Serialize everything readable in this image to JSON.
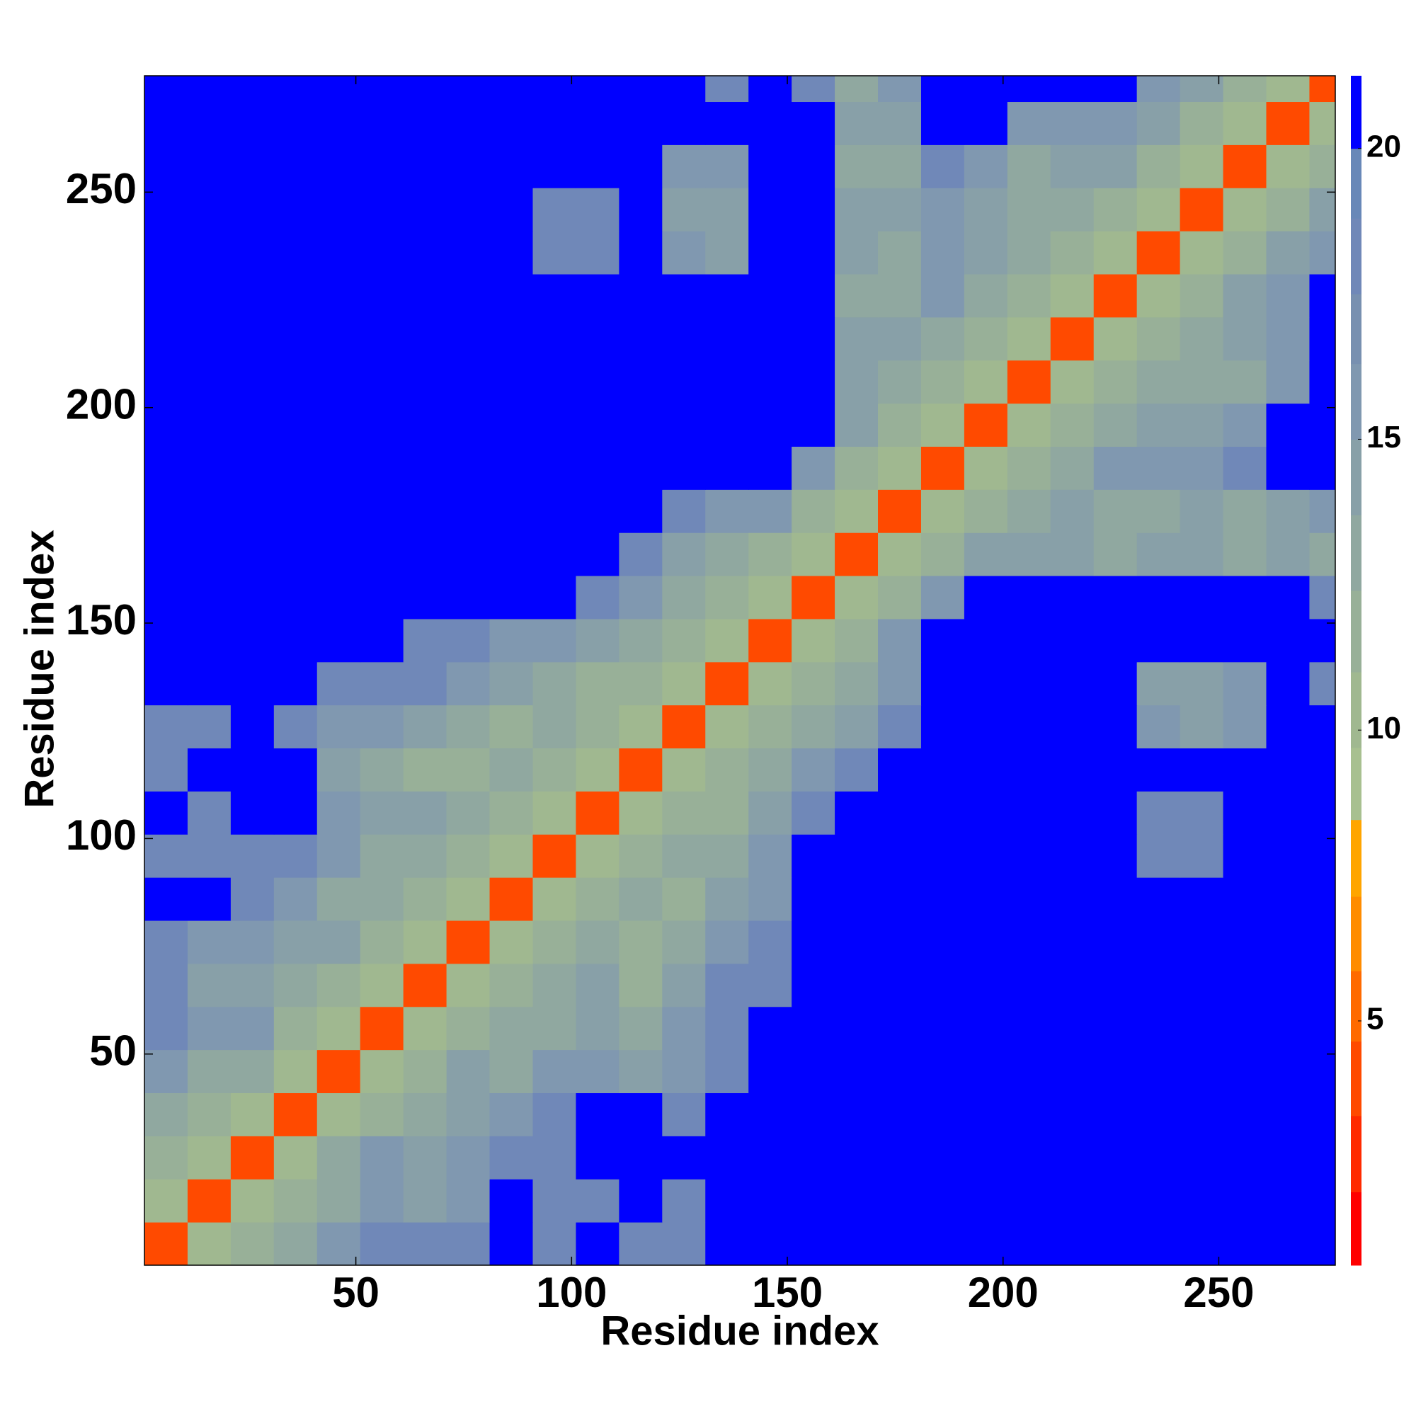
{
  "chart_data": {
    "type": "heatmap",
    "xlabel": "Residue index",
    "ylabel": "Residue index",
    "xlim": [
      1,
      277
    ],
    "ylim": [
      1,
      277
    ],
    "xticks": [
      50,
      100,
      150,
      200,
      250
    ],
    "yticks": [
      50,
      100,
      150,
      200,
      250
    ],
    "x_edges": [
      1,
      11,
      21,
      31,
      41,
      51,
      61,
      71,
      81,
      91,
      101,
      111,
      121,
      131,
      141,
      151,
      161,
      171,
      181,
      191,
      201,
      211,
      221,
      231,
      241,
      251,
      261,
      271,
      277
    ],
    "y_edges": [
      1,
      11,
      21,
      31,
      41,
      51,
      61,
      71,
      81,
      91,
      101,
      111,
      121,
      131,
      141,
      151,
      161,
      171,
      181,
      191,
      201,
      211,
      221,
      231,
      241,
      251,
      261,
      271,
      277
    ],
    "z": [
      [
        4,
        11,
        12,
        13,
        16,
        18,
        18,
        18,
        21,
        18,
        21,
        18,
        18,
        21,
        21,
        21,
        21,
        21,
        21,
        21,
        21,
        21,
        21,
        21,
        21,
        21,
        21,
        21
      ],
      [
        11,
        4,
        11,
        12,
        13,
        16,
        14,
        16,
        21,
        18,
        18,
        21,
        18,
        21,
        21,
        21,
        21,
        21,
        21,
        21,
        21,
        21,
        21,
        21,
        21,
        21,
        21,
        21
      ],
      [
        12,
        11,
        4,
        11,
        13,
        16,
        14,
        16,
        18,
        18,
        21,
        21,
        21,
        21,
        21,
        21,
        21,
        21,
        21,
        21,
        21,
        21,
        21,
        21,
        21,
        21,
        21,
        21
      ],
      [
        13,
        12,
        11,
        4,
        11,
        12,
        13,
        14,
        16,
        18,
        21,
        21,
        18,
        21,
        21,
        21,
        21,
        21,
        21,
        21,
        21,
        21,
        21,
        21,
        21,
        21,
        21,
        21
      ],
      [
        16,
        13,
        13,
        11,
        4,
        11,
        12,
        14,
        13,
        16,
        16,
        14,
        16,
        18,
        21,
        21,
        21,
        21,
        21,
        21,
        21,
        21,
        21,
        21,
        21,
        21,
        21,
        21
      ],
      [
        18,
        16,
        16,
        12,
        11,
        4,
        11,
        12,
        13,
        13,
        14,
        13,
        16,
        18,
        21,
        21,
        21,
        21,
        21,
        21,
        21,
        21,
        21,
        21,
        21,
        21,
        21,
        21
      ],
      [
        18,
        14,
        14,
        13,
        12,
        11,
        4,
        11,
        12,
        13,
        14,
        12,
        14,
        18,
        18,
        21,
        21,
        21,
        21,
        21,
        21,
        21,
        21,
        21,
        21,
        21,
        21,
        21
      ],
      [
        18,
        16,
        16,
        14,
        14,
        12,
        11,
        4,
        11,
        12,
        13,
        12,
        13,
        16,
        18,
        21,
        21,
        21,
        21,
        21,
        21,
        21,
        21,
        21,
        21,
        21,
        21,
        21
      ],
      [
        21,
        21,
        18,
        16,
        13,
        13,
        12,
        11,
        4,
        11,
        12,
        13,
        12,
        14,
        16,
        21,
        21,
        21,
        21,
        21,
        21,
        21,
        21,
        21,
        21,
        21,
        21,
        21
      ],
      [
        18,
        18,
        18,
        18,
        16,
        13,
        13,
        12,
        11,
        4,
        11,
        12,
        13,
        13,
        16,
        21,
        21,
        21,
        21,
        21,
        21,
        21,
        21,
        18,
        18,
        21,
        21,
        21
      ],
      [
        21,
        18,
        21,
        21,
        16,
        14,
        14,
        13,
        12,
        11,
        4,
        11,
        12,
        12,
        14,
        18,
        21,
        21,
        21,
        21,
        21,
        21,
        21,
        18,
        18,
        21,
        21,
        21
      ],
      [
        18,
        21,
        21,
        21,
        14,
        13,
        12,
        12,
        13,
        12,
        11,
        4,
        11,
        12,
        13,
        16,
        18,
        21,
        21,
        21,
        21,
        21,
        21,
        21,
        21,
        21,
        21,
        21
      ],
      [
        18,
        18,
        21,
        18,
        16,
        16,
        14,
        13,
        12,
        13,
        12,
        11,
        4,
        11,
        12,
        13,
        14,
        18,
        21,
        21,
        21,
        21,
        21,
        16,
        14,
        16,
        21,
        21
      ],
      [
        21,
        21,
        21,
        21,
        18,
        18,
        18,
        16,
        14,
        13,
        12,
        12,
        11,
        4,
        11,
        12,
        13,
        16,
        21,
        21,
        21,
        21,
        21,
        14,
        14,
        16,
        21,
        18
      ],
      [
        21,
        21,
        21,
        21,
        21,
        21,
        18,
        18,
        16,
        16,
        14,
        13,
        12,
        11,
        4,
        11,
        12,
        16,
        21,
        21,
        21,
        21,
        21,
        21,
        21,
        21,
        21,
        21
      ],
      [
        21,
        21,
        21,
        21,
        21,
        21,
        21,
        21,
        21,
        21,
        18,
        16,
        13,
        12,
        11,
        4,
        11,
        12,
        16,
        21,
        21,
        21,
        21,
        21,
        21,
        21,
        21,
        18
      ],
      [
        21,
        21,
        21,
        21,
        21,
        21,
        21,
        21,
        21,
        21,
        21,
        18,
        14,
        13,
        12,
        11,
        4,
        11,
        12,
        14,
        14,
        14,
        13,
        14,
        14,
        13,
        14,
        13
      ],
      [
        21,
        21,
        21,
        21,
        21,
        21,
        21,
        21,
        21,
        21,
        21,
        21,
        18,
        16,
        16,
        12,
        11,
        4,
        11,
        12,
        13,
        14,
        13,
        13,
        14,
        13,
        14,
        16
      ],
      [
        21,
        21,
        21,
        21,
        21,
        21,
        21,
        21,
        21,
        21,
        21,
        21,
        21,
        21,
        21,
        16,
        12,
        11,
        4,
        11,
        12,
        13,
        16,
        16,
        16,
        18,
        21,
        21
      ],
      [
        21,
        21,
        21,
        21,
        21,
        21,
        21,
        21,
        21,
        21,
        21,
        21,
        21,
        21,
        21,
        21,
        14,
        12,
        11,
        4,
        11,
        12,
        13,
        14,
        14,
        16,
        21,
        21
      ],
      [
        21,
        21,
        21,
        21,
        21,
        21,
        21,
        21,
        21,
        21,
        21,
        21,
        21,
        21,
        21,
        21,
        14,
        13,
        12,
        11,
        4,
        11,
        12,
        13,
        13,
        13,
        16,
        21
      ],
      [
        21,
        21,
        21,
        21,
        21,
        21,
        21,
        21,
        21,
        21,
        21,
        21,
        21,
        21,
        21,
        21,
        14,
        14,
        13,
        12,
        11,
        4,
        11,
        12,
        13,
        14,
        16,
        21
      ],
      [
        21,
        21,
        21,
        21,
        21,
        21,
        21,
        21,
        21,
        21,
        21,
        21,
        21,
        21,
        21,
        21,
        13,
        13,
        16,
        13,
        12,
        11,
        4,
        11,
        12,
        14,
        16,
        21
      ],
      [
        21,
        21,
        21,
        21,
        21,
        21,
        21,
        21,
        21,
        18,
        18,
        21,
        16,
        14,
        21,
        21,
        14,
        13,
        16,
        14,
        13,
        12,
        11,
        4,
        11,
        12,
        14,
        16
      ],
      [
        21,
        21,
        21,
        21,
        21,
        21,
        21,
        21,
        21,
        18,
        18,
        21,
        14,
        14,
        21,
        21,
        14,
        14,
        16,
        14,
        13,
        13,
        12,
        11,
        4,
        11,
        12,
        14
      ],
      [
        21,
        21,
        21,
        21,
        21,
        21,
        21,
        21,
        21,
        21,
        21,
        21,
        16,
        16,
        21,
        21,
        13,
        13,
        18,
        16,
        13,
        14,
        14,
        12,
        11,
        4,
        11,
        12
      ],
      [
        21,
        21,
        21,
        21,
        21,
        21,
        21,
        21,
        21,
        21,
        21,
        21,
        21,
        21,
        21,
        21,
        14,
        14,
        21,
        21,
        16,
        16,
        16,
        14,
        12,
        11,
        4,
        11
      ],
      [
        21,
        21,
        21,
        21,
        21,
        21,
        21,
        21,
        21,
        21,
        21,
        21,
        21,
        18,
        21,
        18,
        13,
        16,
        21,
        21,
        21,
        21,
        21,
        16,
        14,
        12,
        11,
        4
      ]
    ],
    "colorbar": {
      "lim": [
        0.8,
        21.25
      ],
      "ticks": [
        5,
        10,
        15,
        20
      ],
      "boundaries": [
        0.8,
        2.06,
        3.37,
        4.65,
        5.86,
        7.14,
        8.46,
        9.7,
        11,
        12.4,
        13.7,
        15,
        16.3,
        17.5,
        18.8,
        20,
        21.25
      ],
      "colors": [
        "#ff0000",
        "#ff2a00",
        "#ff4a00",
        "#ff6a00",
        "#ff8c00",
        "#ffa500",
        "#a8c090",
        "#a0b890",
        "#98b098",
        "#90a8a0",
        "#88a0a8",
        "#8098b0",
        "#7890b0",
        "#7088b8",
        "#6888b8",
        "#0000ff"
      ]
    }
  }
}
